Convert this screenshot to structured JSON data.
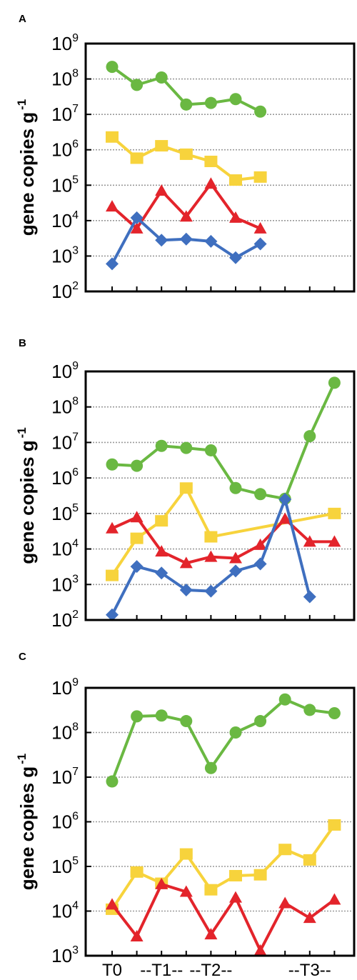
{
  "colors": {
    "green": "#6ab842",
    "yellow": "#f7d33c",
    "red": "#e3242b",
    "blue": "#3f6fbf",
    "grid": "#9a9a9a"
  },
  "chart_data": [
    {
      "type": "line",
      "panel": "A",
      "ylabel": "gene copies g",
      "ylabel_exponent": "-1",
      "yscale": "log",
      "ylim": [
        100,
        1000000000
      ],
      "yticks": [
        {
          "base": "10",
          "exp": "2"
        },
        {
          "base": "10",
          "exp": "3"
        },
        {
          "base": "10",
          "exp": "4"
        },
        {
          "base": "10",
          "exp": "5"
        },
        {
          "base": "10",
          "exp": "6"
        },
        {
          "base": "10",
          "exp": "7"
        },
        {
          "base": "10",
          "exp": "8"
        },
        {
          "base": "10",
          "exp": "9"
        }
      ],
      "grid": "horizontal dotted",
      "series": [
        {
          "color": "green",
          "marker": "circle",
          "x": [
            1,
            2,
            3,
            4,
            5,
            6,
            7
          ],
          "values": [
            220000000,
            68000000,
            110000000,
            19000000,
            21000000,
            27000000,
            12000000
          ]
        },
        {
          "color": "yellow",
          "marker": "square",
          "x": [
            1,
            2,
            3,
            4,
            5,
            6,
            7
          ],
          "values": [
            2300000,
            580000,
            1300000,
            750000,
            470000,
            140000,
            170000
          ]
        },
        {
          "color": "red",
          "marker": "triangle",
          "x": [
            1,
            2,
            3,
            4,
            5,
            6,
            7
          ],
          "values": [
            25000,
            6000,
            70000,
            13000,
            110000,
            12000,
            6000
          ]
        },
        {
          "color": "blue",
          "marker": "diamond",
          "x": [
            1,
            2,
            3,
            4,
            5,
            6,
            7
          ],
          "values": [
            600,
            12000,
            2800,
            3000,
            2600,
            900,
            2200
          ]
        }
      ]
    },
    {
      "type": "line",
      "panel": "B",
      "ylabel": "gene copies g",
      "ylabel_exponent": "-1",
      "yscale": "log",
      "ylim": [
        100,
        1000000000
      ],
      "yticks": [
        {
          "base": "10",
          "exp": "2"
        },
        {
          "base": "10",
          "exp": "3"
        },
        {
          "base": "10",
          "exp": "4"
        },
        {
          "base": "10",
          "exp": "5"
        },
        {
          "base": "10",
          "exp": "6"
        },
        {
          "base": "10",
          "exp": "7"
        },
        {
          "base": "10",
          "exp": "8"
        },
        {
          "base": "10",
          "exp": "9"
        }
      ],
      "grid": "horizontal dotted",
      "series": [
        {
          "color": "green",
          "marker": "circle",
          "x": [
            1,
            2,
            3,
            4,
            5,
            6,
            7,
            8,
            9,
            10
          ],
          "values": [
            2400000,
            2200000,
            8000000,
            7000000,
            6000000,
            520000,
            350000,
            260000,
            15000000,
            480000000
          ]
        },
        {
          "color": "yellow",
          "marker": "square",
          "x": [
            1,
            2,
            3,
            4,
            5,
            10
          ],
          "values": [
            1800,
            20000,
            62000,
            520000,
            22000,
            100000
          ]
        },
        {
          "color": "red",
          "marker": "triangle",
          "x": [
            1,
            2,
            3,
            4,
            5,
            6,
            7,
            8,
            9,
            10
          ],
          "values": [
            38000,
            78000,
            8500,
            4000,
            6000,
            5500,
            13000,
            70000,
            16000,
            16000
          ]
        },
        {
          "color": "blue",
          "marker": "diamond",
          "x": [
            1,
            2,
            3,
            4,
            5,
            6,
            7,
            8,
            9
          ],
          "values": [
            140,
            3200,
            2100,
            700,
            650,
            2400,
            3800,
            250000,
            450
          ]
        }
      ]
    },
    {
      "type": "line",
      "panel": "C",
      "ylabel": "gene copies g",
      "ylabel_exponent": "-1",
      "yscale": "log",
      "ylim": [
        1000,
        1000000000
      ],
      "yticks": [
        {
          "base": "10",
          "exp": "3"
        },
        {
          "base": "10",
          "exp": "4"
        },
        {
          "base": "10",
          "exp": "5"
        },
        {
          "base": "10",
          "exp": "6"
        },
        {
          "base": "10",
          "exp": "7"
        },
        {
          "base": "10",
          "exp": "8"
        },
        {
          "base": "10",
          "exp": "9"
        }
      ],
      "xticklabels": [
        {
          "label": "T0",
          "x": 1
        },
        {
          "label": "--T1--",
          "x": 3
        },
        {
          "label": "--T2--",
          "x": 5
        },
        {
          "label": "--T3--",
          "x": 9
        }
      ],
      "grid": "horizontal dotted",
      "series": [
        {
          "color": "green",
          "marker": "circle",
          "x": [
            1,
            2,
            3,
            4,
            5,
            6,
            7,
            8,
            9,
            10
          ],
          "values": [
            8000000,
            230000000,
            240000000,
            180000000,
            16000000,
            100000000,
            180000000,
            550000000,
            320000000,
            270000000
          ]
        },
        {
          "color": "yellow",
          "marker": "square",
          "x": [
            1,
            2,
            3,
            4,
            5,
            6,
            7,
            8,
            9,
            10
          ],
          "values": [
            11000,
            75000,
            42000,
            190000,
            30000,
            62000,
            65000,
            240000,
            140000,
            850000
          ]
        },
        {
          "color": "red",
          "marker": "triangle",
          "x": [
            1,
            2,
            3,
            4,
            5,
            6,
            7,
            8,
            9,
            10
          ],
          "values": [
            14000,
            2700,
            40000,
            27000,
            3000,
            20000,
            1300,
            15000,
            7000,
            18000
          ]
        }
      ]
    }
  ]
}
